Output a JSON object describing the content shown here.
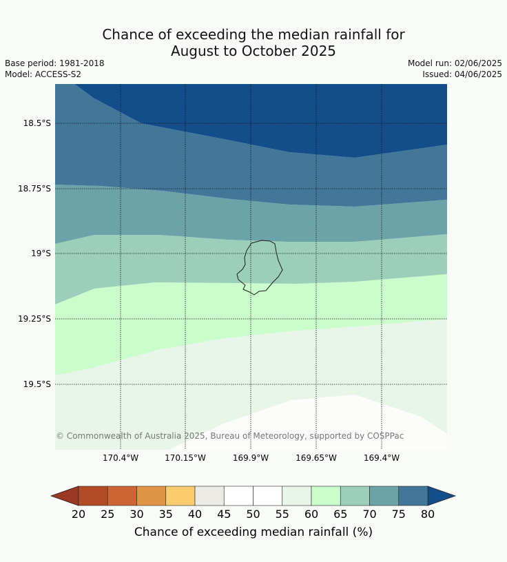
{
  "title": {
    "line1": "Chance of exceeding the median rainfall for",
    "line2": "August to October 2025"
  },
  "meta": {
    "base_period": "Base period: 1981-2018",
    "model": "Model: ACCESS-S2",
    "model_run": "Model run: 02/06/2025",
    "issued": "Issued: 04/06/2025"
  },
  "map": {
    "lat_labels": [
      "18.5°S",
      "18.75°S",
      "19°S",
      "19.25°S",
      "19.5°S"
    ],
    "lon_labels": [
      "170.4°W",
      "170.15°W",
      "169.9°W",
      "169.65°W",
      "169.4°W"
    ],
    "copyright": "© Commonwealth of Australia 2025, Bureau of Meteorology, supported by COSPPac",
    "zone_colors": {
      "above_80": "#134e8a",
      "75_80": "#42779a",
      "70_75": "#6ca3a8",
      "65_70": "#9ccfb9",
      "60_65": "#cbfdcc",
      "55_60": "#e9f5e8",
      "50_55": "#fcfdfb"
    }
  },
  "colorbar": {
    "ticks": [
      "20",
      "25",
      "30",
      "35",
      "40",
      "45",
      "50",
      "55",
      "60",
      "65",
      "70",
      "75",
      "80"
    ],
    "colors": [
      "#b24a26",
      "#cd6532",
      "#e09446",
      "#fccb6b",
      "#ebeae5",
      "#ffffff",
      "#ffffff",
      "#e9f5e8",
      "#cbfdcc",
      "#9ccfb9",
      "#6ca3a8",
      "#42779a"
    ],
    "low_color": "#9b3823",
    "high_color": "#134e8a",
    "label": "Chance of exceeding median rainfall (%)"
  }
}
